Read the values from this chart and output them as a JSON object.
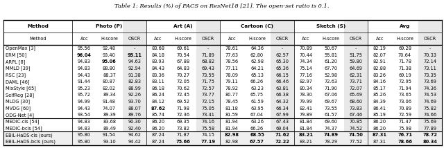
{
  "title": "Table 1: Results (%) of PACS on ResNet18 [21]. The open-set ratio is 0.1.",
  "groups": [
    "Photo (P)",
    "Art (A)",
    "Cartoon (C)",
    "Sketch (S)",
    "Avg"
  ],
  "sub_cols": [
    "Acc",
    "H-score",
    "OSCR"
  ],
  "rows": [
    [
      "OpenMax [3]",
      "95.56",
      "92.48",
      "-",
      "83.68",
      "69.61",
      "-",
      "78.61",
      "64.36",
      "-",
      "70.89",
      "50.67",
      "-",
      "82.19",
      "69.28",
      "-"
    ],
    [
      "ERM [50]",
      "96.04",
      "93.40",
      "95.11",
      "84.18",
      "70.54",
      "71.89",
      "77.63",
      "62.80",
      "62.57",
      "70.44",
      "55.81",
      "51.75",
      "82.07",
      "70.64",
      "70.33"
    ],
    [
      "ARPL [8]",
      "94.83",
      "95.06",
      "94.63",
      "83.93",
      "67.88",
      "68.82",
      "78.56",
      "62.98",
      "65.30",
      "74.34",
      "61.20",
      "59.80",
      "82.91",
      "71.78",
      "72.14"
    ],
    [
      "MMLD [39]",
      "94.83",
      "88.80",
      "92.94",
      "84.43",
      "64.83",
      "69.43",
      "77.11",
      "64.21",
      "65.36",
      "75.14",
      "67.70",
      "64.69",
      "82.88",
      "71.38",
      "73.11"
    ],
    [
      "RSC [23]",
      "94.43",
      "88.37",
      "91.38",
      "83.36",
      "70.27",
      "73.55",
      "78.09",
      "65.13",
      "66.15",
      "77.16",
      "52.98",
      "62.31",
      "83.26",
      "69.19",
      "73.35"
    ],
    [
      "DAML [46]",
      "91.44",
      "80.87",
      "82.83",
      "83.11",
      "72.05",
      "71.75",
      "79.11",
      "66.26",
      "66.46",
      "82.97",
      "72.63",
      "73.71",
      "84.16",
      "72.95",
      "73.69"
    ],
    [
      "MixStyle [65]",
      "95.23",
      "82.02",
      "88.99",
      "86.18",
      "70.62",
      "72.57",
      "78.92",
      "63.23",
      "63.81",
      "80.34",
      "71.90",
      "72.07",
      "85.17",
      "71.94",
      "74.36"
    ],
    [
      "SelfReg [28]",
      "95.72",
      "89.34",
      "92.26",
      "86.24",
      "72.45",
      "73.77",
      "80.77",
      "65.75",
      "66.38",
      "78.30",
      "67.06",
      "65.69",
      "85.26",
      "73.65",
      "74.53"
    ],
    [
      "MLDG [30]",
      "94.99",
      "91.48",
      "93.70",
      "84.12",
      "69.52",
      "72.15",
      "78.45",
      "61.59",
      "64.32",
      "79.99",
      "69.67",
      "68.60",
      "84.39",
      "73.06",
      "74.69"
    ],
    [
      "MVDG [60]",
      "94.43",
      "74.07",
      "88.07",
      "87.62",
      "71.98",
      "75.05",
      "81.18",
      "63.95",
      "66.34",
      "82.41",
      "73.55",
      "73.83",
      "86.41",
      "70.89",
      "75.82"
    ],
    [
      "ODG-Net [4]",
      "93.54",
      "89.39",
      "89.76",
      "85.74",
      "72.36",
      "73.41",
      "81.59",
      "67.04",
      "67.99",
      "79.89",
      "61.57",
      "67.46",
      "85.19",
      "72.59",
      "74.66"
    ]
  ],
  "rows_medic": [
    [
      "MEDIC-cls [54]",
      "94.83",
      "83.68",
      "90.30",
      "86.20",
      "69.35",
      "74.16",
      "81.94",
      "63.26",
      "67.43",
      "81.84",
      "69.60",
      "70.85",
      "86.20",
      "71.47",
      "75.69"
    ],
    [
      "MEDIC-bcls [54]",
      "94.83",
      "89.49",
      "92.40",
      "86.20",
      "73.82",
      "75.58",
      "81.94",
      "66.26",
      "69.04",
      "81.84",
      "74.37",
      "74.52",
      "86.20",
      "75.98",
      "77.89"
    ]
  ],
  "rows_ours": [
    [
      "EBiL-HaDS-cls (ours)",
      "95.80",
      "91.54",
      "94.62",
      "87.24",
      "71.87",
      "74.15",
      "82.98",
      "68.55",
      "71.62",
      "83.21",
      "74.89",
      "74.50",
      "87.31",
      "76.71",
      "78.72"
    ],
    [
      "EBiL-HaDS-bcls (ours)",
      "95.80",
      "93.10",
      "94.42",
      "87.24",
      "75.66",
      "77.19",
      "82.98",
      "67.57",
      "72.22",
      "83.21",
      "78.29",
      "77.52",
      "87.31",
      "78.66",
      "80.34"
    ]
  ],
  "bold_info": {
    "ERM [50]": [
      1,
      3
    ],
    "ARPL [8]": [
      2
    ],
    "MVDG [60]": [
      4
    ],
    "EBiL-HaDS-cls (ours)": [
      7,
      8,
      9,
      10,
      11,
      12,
      13,
      14,
      15
    ],
    "EBiL-HaDS-bcls (ours)": [
      5,
      6,
      8,
      9,
      14,
      15
    ]
  },
  "oscr_col_indices": [
    3,
    6,
    9,
    12,
    15
  ],
  "shaded_col_color": "#e8e8e8",
  "ours_row_color": "#efefef",
  "title_fontsize": 6.0,
  "header_fontsize": 5.2,
  "data_fontsize": 4.8
}
